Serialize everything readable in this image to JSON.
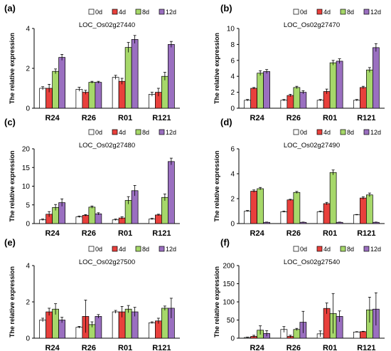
{
  "figure": {
    "legend_labels": [
      "0d",
      "4d",
      "8d",
      "12d"
    ],
    "colors": {
      "0d": "#ffffff",
      "4d": "#e8403c",
      "8d": "#a6d86a",
      "12d": "#9a6fc0",
      "outline": "#000000",
      "errorbar": "#000000"
    }
  },
  "chart_data": [
    {
      "panel_label": "(a)",
      "type": "bar",
      "title": "LOC_Os02g27440",
      "ylabel": "The relative expression",
      "xlabel": "",
      "legend": "top-right",
      "grid": false,
      "categories": [
        "R24",
        "R26",
        "R01",
        "R121"
      ],
      "ylim": [
        0,
        4
      ],
      "yticks": [
        "0",
        "2",
        "4"
      ],
      "series": [
        {
          "name": "0d",
          "values": [
            1.0,
            0.95,
            1.55,
            0.7
          ],
          "errors": [
            0.08,
            0.1,
            0.1,
            0.1
          ]
        },
        {
          "name": "4d",
          "values": [
            1.0,
            0.8,
            1.35,
            0.8
          ],
          "errors": [
            0.2,
            0.1,
            0.15,
            0.2
          ]
        },
        {
          "name": "8d",
          "values": [
            1.85,
            1.3,
            3.05,
            1.6
          ],
          "errors": [
            0.12,
            0.05,
            0.25,
            0.2
          ]
        },
        {
          "name": "12d",
          "values": [
            2.55,
            1.3,
            3.45,
            3.2
          ],
          "errors": [
            0.15,
            0.05,
            0.2,
            0.15
          ]
        }
      ]
    },
    {
      "panel_label": "(b)",
      "type": "bar",
      "title": "LOC_Os02g27470",
      "ylabel": "The relative expression",
      "xlabel": "",
      "legend": "top-right",
      "grid": false,
      "categories": [
        "R24",
        "R26",
        "R01",
        "R121"
      ],
      "ylim": [
        0,
        10
      ],
      "yticks": [
        "0",
        "2",
        "4",
        "6",
        "8",
        "10"
      ],
      "series": [
        {
          "name": "0d",
          "values": [
            1.0,
            1.0,
            1.0,
            1.0
          ],
          "errors": [
            0.1,
            0.1,
            0.1,
            0.1
          ]
        },
        {
          "name": "4d",
          "values": [
            2.5,
            1.6,
            2.1,
            2.6
          ],
          "errors": [
            0.1,
            0.15,
            0.3,
            0.15
          ]
        },
        {
          "name": "8d",
          "values": [
            4.4,
            2.6,
            5.7,
            4.8
          ],
          "errors": [
            0.3,
            0.15,
            0.3,
            0.3
          ]
        },
        {
          "name": "12d",
          "values": [
            4.6,
            2.0,
            5.9,
            7.6
          ],
          "errors": [
            0.25,
            0.2,
            0.3,
            0.5
          ]
        }
      ]
    },
    {
      "panel_label": "(c)",
      "type": "bar",
      "title": "LOC_Os02g27480",
      "ylabel": "The relative expression",
      "xlabel": "",
      "legend": "top-right",
      "grid": false,
      "categories": [
        "R24",
        "R26",
        "R01",
        "R121"
      ],
      "ylim": [
        0,
        20
      ],
      "yticks": [
        "0",
        "5",
        "10",
        "15",
        "20"
      ],
      "series": [
        {
          "name": "0d",
          "values": [
            1.0,
            1.8,
            1.0,
            1.2
          ],
          "errors": [
            0.2,
            0.2,
            0.2,
            0.2
          ]
        },
        {
          "name": "4d",
          "values": [
            2.5,
            2.2,
            1.5,
            2.3
          ],
          "errors": [
            0.7,
            0.2,
            0.3,
            0.2
          ]
        },
        {
          "name": "8d",
          "values": [
            4.3,
            4.4,
            6.2,
            7.0
          ],
          "errors": [
            0.8,
            0.3,
            1.0,
            0.9
          ]
        },
        {
          "name": "12d",
          "values": [
            5.6,
            2.6,
            8.8,
            16.6
          ],
          "errors": [
            1.0,
            0.3,
            1.4,
            0.9
          ]
        }
      ]
    },
    {
      "panel_label": "(d)",
      "type": "bar",
      "title": "LOC_Os02g27490",
      "ylabel": "The relative expression",
      "xlabel": "",
      "legend": "top-right",
      "grid": false,
      "categories": [
        "R24",
        "R26",
        "R01",
        "R121"
      ],
      "ylim": [
        0,
        6
      ],
      "yticks": [
        "0",
        "2",
        "4",
        "6"
      ],
      "series": [
        {
          "name": "0d",
          "values": [
            1.0,
            0.95,
            0.95,
            0.7
          ],
          "errors": [
            0.05,
            0.05,
            0.05,
            0.03
          ]
        },
        {
          "name": "4d",
          "values": [
            2.6,
            1.9,
            1.6,
            2.05
          ],
          "errors": [
            0.1,
            0.05,
            0.1,
            0.1
          ]
        },
        {
          "name": "8d",
          "values": [
            2.8,
            2.5,
            4.1,
            2.3
          ],
          "errors": [
            0.1,
            0.08,
            0.2,
            0.15
          ]
        },
        {
          "name": "12d",
          "values": [
            0.1,
            0.1,
            0.1,
            0.1
          ],
          "errors": [
            0.02,
            0.02,
            0.02,
            0.02
          ]
        }
      ]
    },
    {
      "panel_label": "(e)",
      "type": "bar",
      "title": "LOC_Os02g27500",
      "ylabel": "The relative expression",
      "xlabel": "",
      "legend": "top-right",
      "grid": false,
      "categories": [
        "R24",
        "R26",
        "R01",
        "R121"
      ],
      "ylim": [
        0,
        4
      ],
      "yticks": [
        "0",
        "2",
        "4"
      ],
      "series": [
        {
          "name": "0d",
          "values": [
            1.0,
            0.6,
            1.45,
            0.85
          ],
          "errors": [
            0.1,
            0.05,
            0.08,
            0.05
          ]
        },
        {
          "name": "4d",
          "values": [
            1.45,
            1.2,
            1.45,
            0.95
          ],
          "errors": [
            0.2,
            0.9,
            0.3,
            0.15
          ]
        },
        {
          "name": "8d",
          "values": [
            1.6,
            0.75,
            1.6,
            1.65
          ],
          "errors": [
            0.3,
            0.15,
            0.2,
            0.12
          ]
        },
        {
          "name": "12d",
          "values": [
            1.0,
            1.2,
            1.45,
            1.65
          ],
          "errors": [
            0.15,
            0.1,
            0.25,
            0.55
          ]
        }
      ]
    },
    {
      "panel_label": "(f)",
      "type": "bar",
      "title": "LOC_Os02g27540",
      "ylabel": "The relative expression",
      "xlabel": "",
      "legend": "top-right",
      "grid": false,
      "categories": [
        "R24",
        "R26",
        "R01",
        "R121"
      ],
      "ylim": [
        0,
        200
      ],
      "yticks": [
        "0",
        "50",
        "100",
        "150",
        "200"
      ],
      "series": [
        {
          "name": "0d",
          "values": [
            2,
            24,
            12,
            17
          ],
          "errors": [
            1,
            8,
            8,
            1
          ]
        },
        {
          "name": "4d",
          "values": [
            5,
            5,
            82,
            18
          ],
          "errors": [
            3,
            3,
            15,
            1
          ]
        },
        {
          "name": "8d",
          "values": [
            22,
            24,
            68,
            78
          ],
          "errors": [
            12,
            3,
            55,
            35
          ]
        },
        {
          "name": "12d",
          "values": [
            13,
            44,
            60,
            80
          ],
          "errors": [
            8,
            30,
            15,
            45
          ]
        }
      ]
    }
  ]
}
